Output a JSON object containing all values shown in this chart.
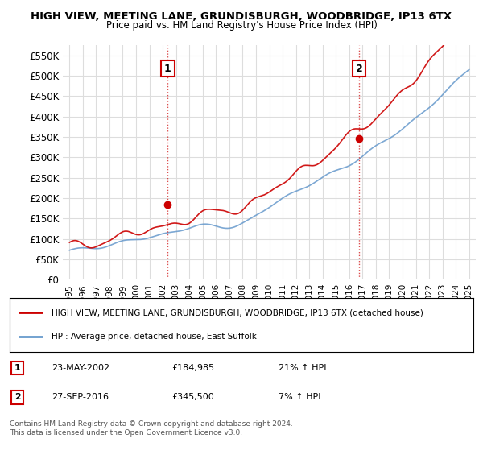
{
  "title": "HIGH VIEW, MEETING LANE, GRUNDISBURGH, WOODBRIDGE, IP13 6TX",
  "subtitle": "Price paid vs. HM Land Registry's House Price Index (HPI)",
  "legend_line1": "HIGH VIEW, MEETING LANE, GRUNDISBURGH, WOODBRIDGE, IP13 6TX (detached house)",
  "legend_line2": "HPI: Average price, detached house, East Suffolk",
  "annotation1_label": "1",
  "annotation1_date": "23-MAY-2002",
  "annotation1_price": "£184,985",
  "annotation1_hpi": "21% ↑ HPI",
  "annotation1_year": 2002.38,
  "annotation1_value": 184985,
  "annotation2_label": "2",
  "annotation2_date": "27-SEP-2016",
  "annotation2_price": "£345,500",
  "annotation2_hpi": "7% ↑ HPI",
  "annotation2_year": 2016.74,
  "annotation2_value": 345500,
  "footer_line1": "Contains HM Land Registry data © Crown copyright and database right 2024.",
  "footer_line2": "This data is licensed under the Open Government Licence v3.0.",
  "red_color": "#cc0000",
  "blue_color": "#6699cc",
  "background_color": "#ffffff",
  "grid_color": "#dddddd",
  "ylim": [
    0,
    575000
  ],
  "yticks": [
    0,
    50000,
    100000,
    150000,
    200000,
    250000,
    300000,
    350000,
    400000,
    450000,
    500000,
    550000
  ],
  "xlim_start": 1994.5,
  "xlim_end": 2025.5,
  "xtick_years": [
    1995,
    1996,
    1997,
    1998,
    1999,
    2000,
    2001,
    2002,
    2003,
    2004,
    2005,
    2006,
    2007,
    2008,
    2009,
    2010,
    2011,
    2012,
    2013,
    2014,
    2015,
    2016,
    2017,
    2018,
    2019,
    2020,
    2021,
    2022,
    2023,
    2024,
    2025
  ]
}
